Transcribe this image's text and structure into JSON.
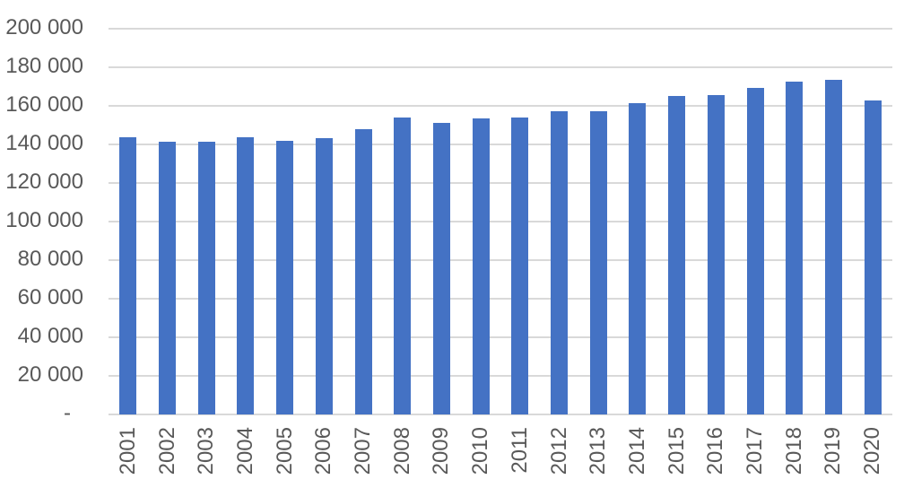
{
  "chart_data": {
    "type": "bar",
    "title": "",
    "xlabel": "",
    "ylabel": "",
    "categories": [
      "2001",
      "2002",
      "2003",
      "2004",
      "2005",
      "2006",
      "2007",
      "2008",
      "2009",
      "2010",
      "2011",
      "2012",
      "2013",
      "2014",
      "2015",
      "2016",
      "2017",
      "2018",
      "2019",
      "2020"
    ],
    "values": [
      143800,
      141600,
      141500,
      143600,
      142100,
      143400,
      147700,
      154100,
      151400,
      153600,
      154000,
      157000,
      157400,
      161200,
      164900,
      165600,
      169300,
      172500,
      173600,
      162900
    ],
    "ylim": [
      0,
      200000
    ],
    "y_ticks": [
      {
        "value": 0,
        "label": "-"
      },
      {
        "value": 20000,
        "label": "20 000"
      },
      {
        "value": 40000,
        "label": "40 000"
      },
      {
        "value": 60000,
        "label": "60 000"
      },
      {
        "value": 80000,
        "label": "80 000"
      },
      {
        "value": 100000,
        "label": "100 000"
      },
      {
        "value": 120000,
        "label": "120 000"
      },
      {
        "value": 140000,
        "label": "140 000"
      },
      {
        "value": 160000,
        "label": "160 000"
      },
      {
        "value": 180000,
        "label": "180 000"
      },
      {
        "value": 200000,
        "label": "200 000"
      }
    ],
    "grid": true,
    "legend": false,
    "x_label_rotation_degrees": 90,
    "colors": {
      "bar": "#4472C4",
      "gridline": "#D9D9D9",
      "axis_line": "#D9D9D9",
      "tick_text": "#595959",
      "background": "#FFFFFF"
    }
  }
}
